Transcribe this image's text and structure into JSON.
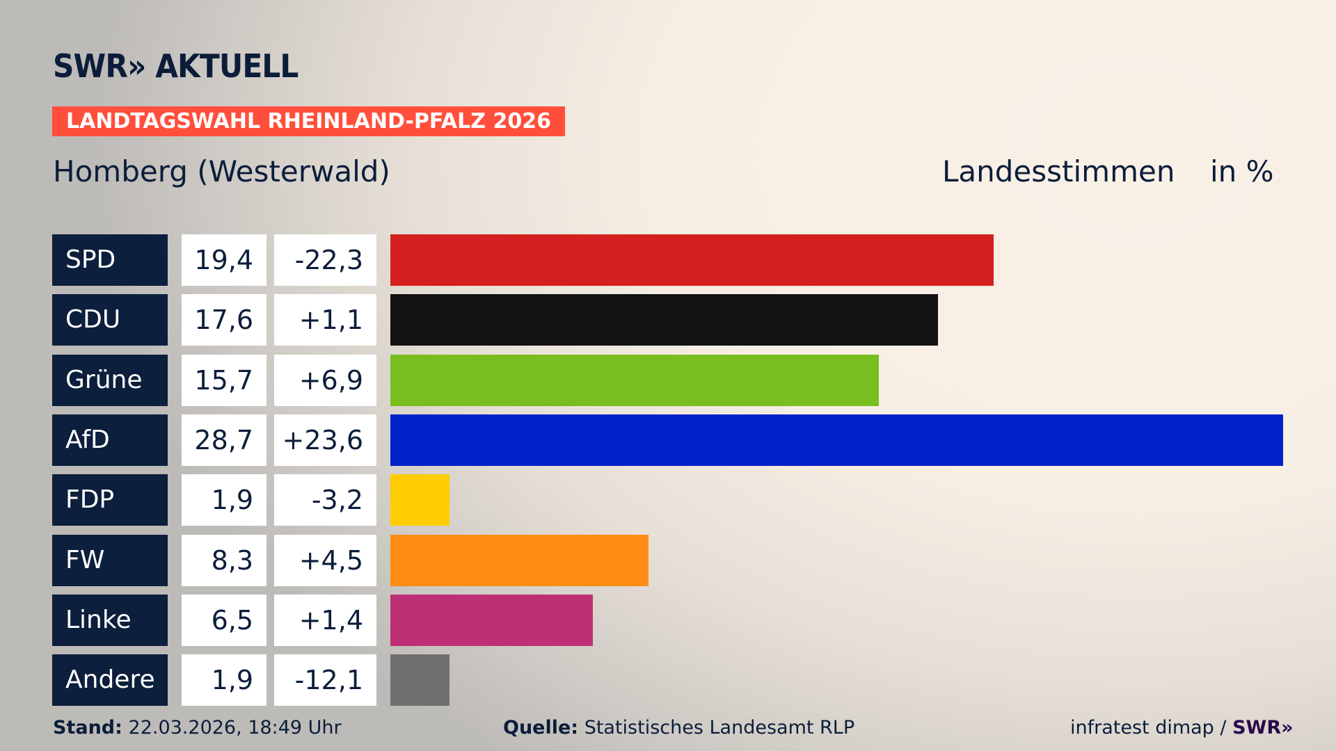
{
  "header": {
    "logo": "SWR» AKTUELL",
    "banner": "LANDTAGSWAHL RHEINLAND-PFALZ 2026",
    "place": "Homberg (Westerwald)",
    "vote_type": "Landesstimmen",
    "unit": "in %"
  },
  "chart_data": {
    "type": "bar",
    "orientation": "horizontal",
    "categories": [
      "SPD",
      "CDU",
      "Grüne",
      "AfD",
      "FDP",
      "FW",
      "Linke",
      "Andere"
    ],
    "values": [
      19.4,
      17.6,
      15.7,
      28.7,
      1.9,
      8.3,
      6.5,
      1.9
    ],
    "value_labels": [
      "19,4",
      "17,6",
      "15,7",
      "28,7",
      "1,9",
      "8,3",
      "6,5",
      "1,9"
    ],
    "diff_labels": [
      "-22,3",
      "+1,1",
      "+6,9",
      "+23,6",
      "-3,2",
      "+4,5",
      "+1,4",
      "-12,1"
    ],
    "colors": [
      "#d61f1f",
      "#121212",
      "#78be1e",
      "#0021c8",
      "#ffcc00",
      "#ff8c14",
      "#be3075",
      "#707070"
    ],
    "xlim": [
      0,
      28.7
    ],
    "grid": false
  },
  "footer": {
    "stand_label": "Stand:",
    "stand_value": "22.03.2026, 18:49 Uhr",
    "source_label": "Quelle:",
    "source_value": "Statistisches Landesamt RLP",
    "credit": "infratest dimap /",
    "credit_logo": "SWR»"
  }
}
